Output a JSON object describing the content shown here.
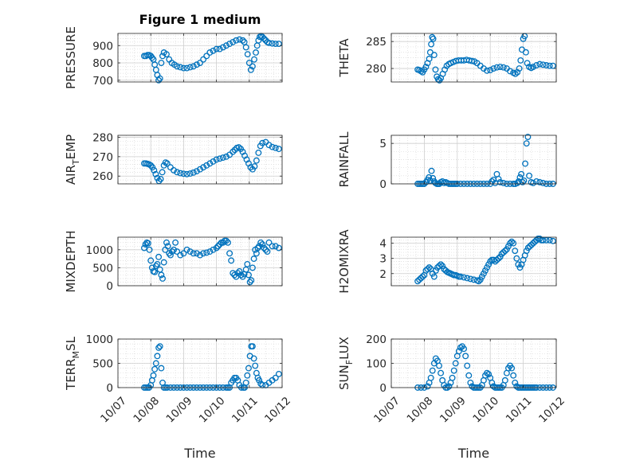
{
  "chart_data": {
    "type": "scatter",
    "title": "Figure 1 medium",
    "marker": "circle-open",
    "grid": true,
    "minor_grid": true,
    "colors": {
      "marker": "#0072BD",
      "grid": "#d9d9d9",
      "axes": "#262626"
    },
    "x_tick_labels": [
      "10/07",
      "10/08",
      "10/09",
      "10/10",
      "10/11",
      "10/12"
    ],
    "x_ticks_days": [
      7,
      8,
      9,
      10,
      11,
      12
    ],
    "x_unit": "day of October",
    "xlabel": "Time",
    "panels": [
      {
        "name": "PRESSURE",
        "ylabel": {
          "main": "PRESSURE",
          "sub": "",
          "tail": ""
        },
        "ylim": [
          690,
          970
        ],
        "yticks": [
          700,
          800,
          900
        ],
        "x": [
          7.8,
          7.85,
          7.9,
          7.95,
          8.0,
          8.04,
          8.08,
          8.12,
          8.16,
          8.2,
          8.24,
          8.28,
          8.32,
          8.36,
          8.4,
          8.48,
          8.56,
          8.64,
          8.72,
          8.8,
          8.9,
          9.0,
          9.1,
          9.2,
          9.3,
          9.4,
          9.5,
          9.6,
          9.7,
          9.8,
          9.9,
          10.0,
          10.1,
          10.2,
          10.3,
          10.4,
          10.5,
          10.6,
          10.7,
          10.8,
          10.85,
          10.9,
          10.95,
          11.0,
          11.05,
          11.1,
          11.15,
          11.2,
          11.24,
          11.28,
          11.32,
          11.36,
          11.4,
          11.45,
          11.5,
          11.55,
          11.6,
          11.7,
          11.8,
          11.9
        ],
        "y": [
          840,
          840,
          845,
          845,
          840,
          830,
          820,
          790,
          760,
          730,
          700,
          710,
          800,
          840,
          860,
          850,
          820,
          800,
          790,
          780,
          775,
          770,
          770,
          775,
          780,
          790,
          800,
          820,
          840,
          860,
          870,
          880,
          880,
          890,
          900,
          910,
          920,
          930,
          935,
          930,
          920,
          890,
          850,
          800,
          760,
          780,
          820,
          860,
          900,
          930,
          950,
          955,
          950,
          940,
          930,
          920,
          915,
          912,
          910,
          910
        ]
      },
      {
        "name": "THETA",
        "ylabel": {
          "main": "THETA",
          "sub": "",
          "tail": ""
        },
        "ylim": [
          277.5,
          286.5
        ],
        "yticks": [
          280,
          285
        ],
        "x": [
          7.8,
          7.85,
          7.9,
          7.95,
          8.0,
          8.05,
          8.1,
          8.15,
          8.18,
          8.21,
          8.24,
          8.27,
          8.3,
          8.34,
          8.38,
          8.42,
          8.46,
          8.5,
          8.56,
          8.62,
          8.68,
          8.74,
          8.8,
          8.88,
          8.96,
          9.04,
          9.12,
          9.2,
          9.28,
          9.36,
          9.44,
          9.52,
          9.6,
          9.7,
          9.8,
          9.9,
          10.0,
          10.1,
          10.2,
          10.3,
          10.4,
          10.5,
          10.6,
          10.7,
          10.76,
          10.82,
          10.88,
          10.92,
          10.96,
          11.0,
          11.04,
          11.08,
          11.12,
          11.18,
          11.24,
          11.3,
          11.4,
          11.5,
          11.6,
          11.7,
          11.8,
          11.9
        ],
        "y": [
          279.8,
          279.7,
          279.5,
          279.3,
          279.8,
          280.3,
          281.0,
          281.8,
          283.0,
          284.5,
          285.8,
          285.5,
          282.5,
          279.8,
          278.5,
          278.0,
          277.8,
          278.2,
          279.0,
          279.8,
          280.5,
          280.8,
          281.0,
          281.2,
          281.4,
          281.5,
          281.5,
          281.5,
          281.6,
          281.5,
          281.4,
          281.3,
          281.0,
          280.5,
          280.0,
          279.6,
          279.7,
          280.0,
          280.2,
          280.3,
          280.2,
          280.0,
          279.5,
          279.2,
          279.0,
          279.3,
          280.0,
          281.5,
          283.5,
          285.5,
          286.0,
          283.0,
          281.0,
          280.3,
          280.1,
          280.3,
          280.6,
          280.8,
          280.7,
          280.6,
          280.5,
          280.5
        ]
      },
      {
        "name": "AIR_TEMP",
        "ylabel": {
          "main": "AIR",
          "sub": "T",
          "tail": "EMP"
        },
        "ylim": [
          256,
          281
        ],
        "yticks": [
          260,
          270,
          280
        ],
        "x": [
          7.8,
          7.85,
          7.9,
          7.95,
          8.0,
          8.05,
          8.1,
          8.15,
          8.2,
          8.25,
          8.3,
          8.35,
          8.4,
          8.45,
          8.5,
          8.6,
          8.7,
          8.8,
          8.9,
          9.0,
          9.1,
          9.2,
          9.3,
          9.4,
          9.5,
          9.6,
          9.7,
          9.8,
          9.9,
          10.0,
          10.1,
          10.2,
          10.3,
          10.4,
          10.5,
          10.56,
          10.62,
          10.68,
          10.74,
          10.8,
          10.86,
          10.92,
          10.98,
          11.04,
          11.1,
          11.16,
          11.22,
          11.28,
          11.34,
          11.4,
          11.5,
          11.6,
          11.7,
          11.8,
          11.9
        ],
        "y": [
          266.5,
          266.5,
          266.3,
          266.0,
          265.5,
          264.5,
          263.0,
          261.0,
          259.0,
          257.5,
          258.5,
          262.0,
          265.5,
          267.0,
          266.5,
          264.5,
          263.0,
          262.0,
          261.5,
          261.2,
          261.0,
          261.3,
          261.8,
          262.5,
          263.5,
          264.5,
          265.5,
          266.5,
          267.5,
          268.5,
          269.0,
          269.5,
          270.0,
          271.0,
          272.5,
          273.5,
          274.5,
          274.8,
          274.0,
          272.5,
          270.5,
          268.5,
          266.5,
          264.5,
          263.5,
          265.0,
          268.0,
          272.0,
          275.5,
          277.0,
          277.5,
          276.0,
          275.0,
          274.5,
          274.0
        ]
      },
      {
        "name": "RAINFALL",
        "ylabel": {
          "main": "RAINFALL",
          "sub": "",
          "tail": ""
        },
        "ylim": [
          0,
          6
        ],
        "yticks": [
          0,
          5
        ],
        "x": [
          7.8,
          7.85,
          7.9,
          7.95,
          8.0,
          8.05,
          8.1,
          8.14,
          8.18,
          8.22,
          8.26,
          8.3,
          8.34,
          8.38,
          8.42,
          8.46,
          8.5,
          8.55,
          8.6,
          8.65,
          8.7,
          8.75,
          8.8,
          8.85,
          8.9,
          8.95,
          9.0,
          9.1,
          9.2,
          9.3,
          9.4,
          9.5,
          9.6,
          9.7,
          9.8,
          9.9,
          10.0,
          10.05,
          10.1,
          10.15,
          10.2,
          10.25,
          10.3,
          10.4,
          10.5,
          10.6,
          10.7,
          10.76,
          10.82,
          10.86,
          10.9,
          10.94,
          10.98,
          11.02,
          11.06,
          11.1,
          11.14,
          11.18,
          11.24,
          11.3,
          11.4,
          11.5,
          11.6,
          11.7,
          11.8,
          11.9
        ],
        "y": [
          0,
          0,
          0,
          0,
          0,
          0.2,
          0.5,
          0.8,
          0.4,
          1.6,
          0.7,
          0.3,
          0.1,
          0,
          0,
          0,
          0.2,
          0.3,
          0.1,
          0.2,
          0.1,
          0,
          0,
          0,
          0,
          0,
          0,
          0,
          0,
          0,
          0,
          0,
          0,
          0,
          0,
          0,
          0,
          0.3,
          0.5,
          0.1,
          1.2,
          0.6,
          0.2,
          0.1,
          0,
          0,
          0,
          0,
          0.1,
          0.3,
          0.8,
          1.2,
          0.2,
          0.4,
          2.5,
          5.0,
          5.8,
          1.0,
          0.2,
          0.1,
          0.3,
          0.2,
          0.1,
          0,
          0,
          0
        ]
      },
      {
        "name": "MIXDEPTH",
        "ylabel": {
          "main": "MIXDEPTH",
          "sub": "",
          "tail": ""
        },
        "ylim": [
          0,
          1350
        ],
        "yticks": [
          0,
          500,
          1000
        ],
        "x": [
          7.8,
          7.84,
          7.88,
          7.92,
          7.96,
          8.0,
          8.04,
          8.08,
          8.12,
          8.16,
          8.2,
          8.24,
          8.28,
          8.32,
          8.36,
          8.4,
          8.44,
          8.48,
          8.52,
          8.56,
          8.6,
          8.65,
          8.7,
          8.75,
          8.8,
          8.9,
          9.0,
          9.1,
          9.2,
          9.3,
          9.4,
          9.5,
          9.6,
          9.7,
          9.8,
          9.9,
          10.0,
          10.05,
          10.1,
          10.15,
          10.2,
          10.25,
          10.3,
          10.35,
          10.4,
          10.45,
          10.5,
          10.55,
          10.6,
          10.65,
          10.7,
          10.75,
          10.8,
          10.85,
          10.9,
          10.94,
          10.98,
          11.02,
          11.06,
          11.1,
          11.14,
          11.18,
          11.22,
          11.26,
          11.3,
          11.35,
          11.4,
          11.45,
          11.5,
          11.55,
          11.6,
          11.7,
          11.8,
          11.9
        ],
        "y": [
          1050,
          1150,
          1200,
          1180,
          1000,
          700,
          500,
          400,
          380,
          550,
          600,
          800,
          450,
          300,
          200,
          650,
          1000,
          1200,
          1100,
          900,
          850,
          950,
          1000,
          1200,
          950,
          850,
          900,
          1000,
          950,
          900,
          900,
          850,
          900,
          920,
          950,
          1000,
          1050,
          1100,
          1150,
          1200,
          1200,
          1250,
          1250,
          1200,
          900,
          700,
          350,
          300,
          250,
          350,
          400,
          300,
          250,
          320,
          450,
          600,
          300,
          100,
          150,
          500,
          750,
          1000,
          900,
          1050,
          1100,
          1200,
          1150,
          1050,
          1000,
          950,
          1200,
          1100,
          1100,
          1050
        ]
      },
      {
        "name": "H2OMIXRA",
        "ylabel": {
          "main": "H2OMIXRA",
          "sub": "",
          "tail": ""
        },
        "ylim": [
          1.2,
          4.4
        ],
        "yticks": [
          2,
          3,
          4
        ],
        "x": [
          7.8,
          7.85,
          7.9,
          7.95,
          8.0,
          8.05,
          8.1,
          8.15,
          8.2,
          8.25,
          8.3,
          8.35,
          8.4,
          8.45,
          8.5,
          8.55,
          8.6,
          8.65,
          8.7,
          8.75,
          8.8,
          8.85,
          8.9,
          8.95,
          9.0,
          9.05,
          9.1,
          9.2,
          9.3,
          9.4,
          9.5,
          9.6,
          9.65,
          9.7,
          9.75,
          9.8,
          9.85,
          9.9,
          9.95,
          10.0,
          10.05,
          10.1,
          10.15,
          10.2,
          10.25,
          10.3,
          10.35,
          10.4,
          10.45,
          10.5,
          10.55,
          10.6,
          10.65,
          10.7,
          10.75,
          10.8,
          10.85,
          10.9,
          10.95,
          11.0,
          11.05,
          11.1,
          11.15,
          11.2,
          11.25,
          11.3,
          11.35,
          11.4,
          11.45,
          11.5,
          11.55,
          11.6,
          11.7,
          11.8,
          11.9
        ],
        "y": [
          1.5,
          1.6,
          1.7,
          1.8,
          1.9,
          2.2,
          2.3,
          2.4,
          2.3,
          2.0,
          1.8,
          2.2,
          2.4,
          2.5,
          2.6,
          2.5,
          2.3,
          2.2,
          2.1,
          2.05,
          2.0,
          1.95,
          1.9,
          1.9,
          1.85,
          1.8,
          1.8,
          1.75,
          1.7,
          1.65,
          1.6,
          1.55,
          1.5,
          1.6,
          1.8,
          2.0,
          2.2,
          2.4,
          2.6,
          2.8,
          2.9,
          2.9,
          2.8,
          2.9,
          3.0,
          3.1,
          3.3,
          3.4,
          3.5,
          3.6,
          3.8,
          4.0,
          4.1,
          4.0,
          3.5,
          3.0,
          2.6,
          2.4,
          2.6,
          2.9,
          3.2,
          3.5,
          3.7,
          3.8,
          3.9,
          4.0,
          4.1,
          4.2,
          4.3,
          4.3,
          4.2,
          4.2,
          4.2,
          4.2,
          4.15
        ]
      },
      {
        "name": "TERR_MSL",
        "ylabel": {
          "main": "TERR",
          "sub": "M",
          "tail": "SL"
        },
        "ylim": [
          0,
          1000
        ],
        "yticks": [
          0,
          500,
          1000
        ],
        "x": [
          7.8,
          7.85,
          7.9,
          7.95,
          8.0,
          8.04,
          8.08,
          8.12,
          8.16,
          8.2,
          8.24,
          8.28,
          8.32,
          8.36,
          8.4,
          8.45,
          8.5,
          8.6,
          8.7,
          8.8,
          8.9,
          9.0,
          9.1,
          9.2,
          9.3,
          9.4,
          9.5,
          9.6,
          9.7,
          9.8,
          9.9,
          10.0,
          10.1,
          10.2,
          10.3,
          10.35,
          10.4,
          10.45,
          10.5,
          10.55,
          10.6,
          10.65,
          10.7,
          10.76,
          10.82,
          10.86,
          10.9,
          10.94,
          10.98,
          11.02,
          11.06,
          11.1,
          11.14,
          11.18,
          11.22,
          11.26,
          11.3,
          11.35,
          11.4,
          11.5,
          11.6,
          11.7,
          11.8,
          11.9
        ],
        "y": [
          0,
          0,
          0,
          0,
          50,
          150,
          250,
          380,
          500,
          650,
          820,
          850,
          400,
          100,
          0,
          0,
          0,
          0,
          0,
          0,
          0,
          0,
          0,
          0,
          0,
          0,
          0,
          0,
          0,
          0,
          0,
          0,
          0,
          0,
          0,
          0,
          0,
          100,
          150,
          200,
          200,
          150,
          50,
          0,
          0,
          0,
          100,
          250,
          400,
          650,
          850,
          850,
          600,
          450,
          300,
          200,
          150,
          80,
          50,
          50,
          100,
          150,
          200,
          280
        ]
      },
      {
        "name": "SUN_FLUX",
        "ylabel": {
          "main": "SUN",
          "sub": "F",
          "tail": "LUX"
        },
        "ylim": [
          0,
          200
        ],
        "yticks": [
          0,
          100,
          200
        ],
        "x": [
          7.8,
          7.9,
          8.0,
          8.1,
          8.15,
          8.2,
          8.25,
          8.3,
          8.35,
          8.4,
          8.45,
          8.5,
          8.55,
          8.6,
          8.65,
          8.7,
          8.75,
          8.8,
          8.85,
          8.9,
          8.95,
          9.0,
          9.05,
          9.1,
          9.15,
          9.2,
          9.25,
          9.3,
          9.35,
          9.4,
          9.45,
          9.5,
          9.55,
          9.6,
          9.65,
          9.7,
          9.75,
          9.8,
          9.85,
          9.9,
          9.95,
          10.0,
          10.05,
          10.1,
          10.15,
          10.2,
          10.25,
          10.3,
          10.35,
          10.4,
          10.45,
          10.5,
          10.55,
          10.6,
          10.65,
          10.7,
          10.75,
          10.8,
          10.85,
          10.9,
          10.95,
          11.0,
          11.05,
          11.1,
          11.15,
          11.2,
          11.25,
          11.3,
          11.35,
          11.4,
          11.5,
          11.6,
          11.7,
          11.8,
          11.9
        ],
        "y": [
          0,
          0,
          0,
          5,
          20,
          40,
          70,
          100,
          120,
          110,
          90,
          60,
          30,
          10,
          0,
          0,
          5,
          20,
          40,
          70,
          100,
          130,
          150,
          165,
          170,
          160,
          130,
          90,
          50,
          20,
          5,
          0,
          0,
          0,
          0,
          0,
          10,
          30,
          50,
          60,
          55,
          40,
          20,
          5,
          0,
          0,
          0,
          0,
          0,
          10,
          30,
          60,
          80,
          90,
          80,
          50,
          20,
          5,
          0,
          0,
          0,
          0,
          0,
          0,
          0,
          0,
          0,
          0,
          0,
          0,
          0,
          0,
          0,
          0,
          0
        ]
      }
    ]
  }
}
